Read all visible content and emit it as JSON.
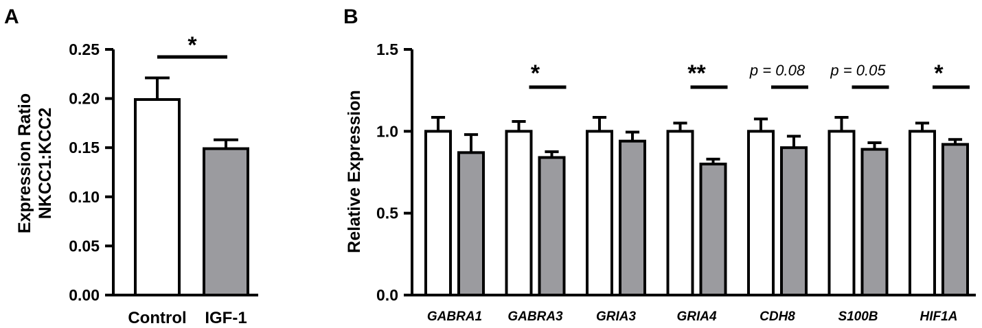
{
  "colors": {
    "control": "#ffffff",
    "igf1": "#9b9b9f",
    "stroke": "#000000"
  },
  "chart_data": [
    {
      "panel_label": "A",
      "type": "bar",
      "title": "",
      "ylabel_line1": "Expression Ratio",
      "ylabel_line2": "NKCC1:KCC2",
      "ylim": [
        0,
        0.25
      ],
      "yticks": [
        "0.00",
        "0.05",
        "0.10",
        "0.15",
        "0.20",
        "0.25"
      ],
      "categories": [
        "Control",
        "IGF-1"
      ],
      "values": [
        0.199,
        0.149
      ],
      "errors": [
        0.022,
        0.009
      ],
      "significance": {
        "label": "*",
        "between": [
          "Control",
          "IGF-1"
        ]
      },
      "grid": false,
      "legend": "none"
    },
    {
      "panel_label": "B",
      "type": "bar",
      "title": "",
      "ylabel": "Relative Expression",
      "ylim": [
        0,
        1.5
      ],
      "yticks": [
        "0.0",
        "0.5",
        "1.0",
        "1.5"
      ],
      "categories": [
        "GABRA1",
        "GABRA3",
        "GRIA3",
        "GRIA4",
        "CDH8",
        "S100B",
        "HIF1A"
      ],
      "series": [
        {
          "values": [
            1.0,
            1.0,
            1.0,
            1.0,
            1.0,
            1.0,
            1.0
          ],
          "errors": [
            0.085,
            0.06,
            0.085,
            0.05,
            0.075,
            0.085,
            0.05
          ]
        },
        {
          "values": [
            0.87,
            0.84,
            0.94,
            0.8,
            0.9,
            0.89,
            0.92
          ],
          "errors": [
            0.11,
            0.035,
            0.055,
            0.03,
            0.07,
            0.04,
            0.03
          ]
        }
      ],
      "significance": [
        "",
        "*",
        "",
        "**",
        "p = 0.08",
        "p = 0.05",
        "*"
      ],
      "grid": false,
      "legend": "none"
    }
  ]
}
